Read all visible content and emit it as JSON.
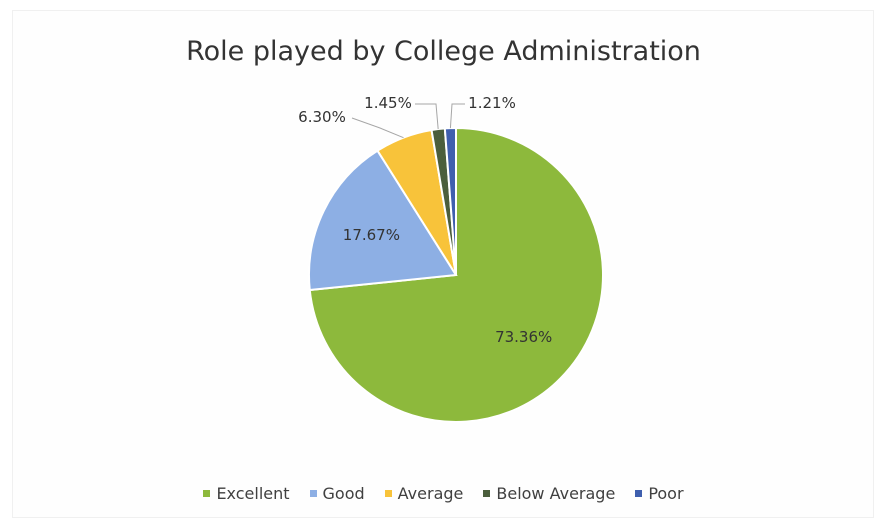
{
  "chart_data": {
    "type": "pie",
    "title": "Role played by College Administration",
    "categories": [
      "Excellent",
      "Good",
      "Average",
      "Below Average",
      "Poor"
    ],
    "values": [
      73.36,
      17.67,
      6.3,
      1.45,
      1.21
    ],
    "labels": [
      "73.36%",
      "17.67%",
      "6.30%",
      "1.45%",
      "1.21%"
    ],
    "colors": [
      "#8DB93C",
      "#8DAFE4",
      "#F8C33A",
      "#4B5E3C",
      "#3F5FAE"
    ],
    "legend_position": "bottom",
    "start_angle": "12 o'clock, clockwise"
  }
}
